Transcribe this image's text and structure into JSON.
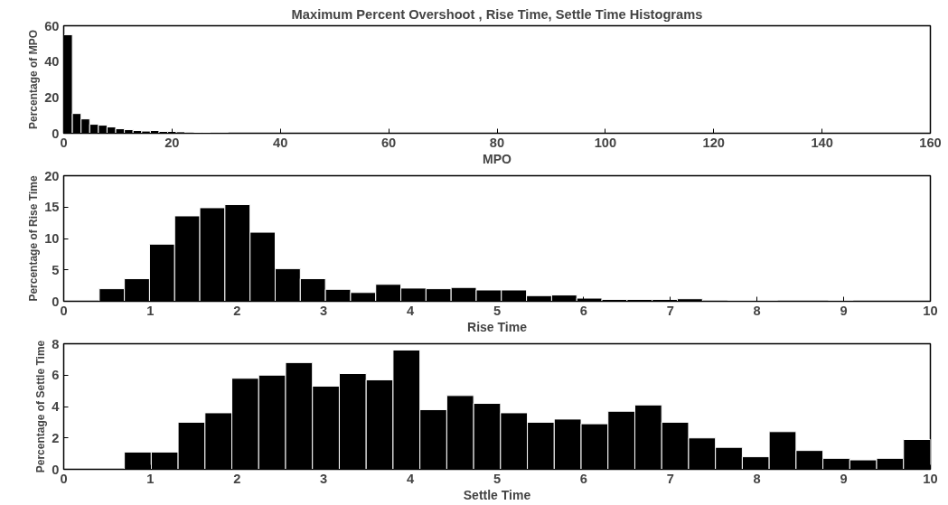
{
  "chart_data": [
    {
      "type": "histogram",
      "title": "Maximum Percent Overshoot , Rise Time, Settle Time Histograms",
      "xlabel": "MPO",
      "ylabel": "Percentage of MPO",
      "color": "#000000",
      "bins": [
        0,
        1.6,
        3.2,
        4.8,
        6.4,
        8,
        9.6,
        11.2,
        12.8,
        14.4,
        16,
        17.6,
        19.2,
        20.8,
        22.4,
        24,
        25.6,
        27.2,
        28.8,
        30.4,
        32,
        33.6,
        35.2,
        36.8,
        38.4,
        40
      ],
      "values": [
        55,
        11,
        8,
        5,
        4.5,
        3.5,
        2.5,
        2,
        1.5,
        1.2,
        1.5,
        1,
        1,
        0.8,
        0.6,
        0.5,
        0.5,
        0.4,
        0.4,
        null,
        null,
        null,
        null,
        null,
        null
      ],
      "xlim": [
        0,
        160
      ],
      "xticks": [
        0,
        20,
        40,
        60,
        80,
        100,
        120,
        140,
        160
      ],
      "ylim": [
        0,
        60
      ],
      "yticks": [
        0,
        20,
        40,
        60
      ],
      "grid": false
    },
    {
      "type": "histogram",
      "xlabel": "Rise Time",
      "ylabel": "Percentage of Rise Time",
      "color": "#000000",
      "bins": [
        0.41,
        0.7,
        0.99,
        1.28,
        1.57,
        1.86,
        2.15,
        2.44,
        2.73,
        3.02,
        3.31,
        3.6,
        3.89,
        4.18,
        4.47,
        4.76,
        5.05,
        5.34,
        5.63,
        5.92,
        6.21,
        6.5,
        6.79,
        7.08,
        7.37,
        7.66,
        7.95,
        8.24,
        8.53,
        8.82,
        9.11,
        9.4,
        9.69,
        9.98
      ],
      "values": [
        2,
        3.6,
        9.1,
        13.6,
        14.9,
        15.4,
        11,
        5.2,
        3.6,
        1.9,
        1.4,
        2.7,
        2.1,
        2.0,
        2.2,
        1.8,
        1.8,
        0.9,
        1.0,
        0.5,
        0.3,
        0.3,
        0.3,
        0.4,
        0,
        0.1,
        0.1,
        0,
        0,
        0.1,
        0,
        0,
        0
      ],
      "xlim": [
        0,
        10
      ],
      "xticks": [
        0,
        1,
        2,
        3,
        4,
        5,
        6,
        7,
        8,
        9,
        10
      ],
      "ylim": [
        0,
        20
      ],
      "yticks": [
        0,
        5,
        10,
        15,
        20
      ],
      "grid": false
    },
    {
      "type": "histogram",
      "xlabel": "Settle Time",
      "ylabel": "Percentage of Settle Time",
      "color": "#000000",
      "bins": [
        0.7,
        1.01,
        1.32,
        1.63,
        1.94,
        2.25,
        2.56,
        2.87,
        3.18,
        3.49,
        3.8,
        4.11,
        4.42,
        4.73,
        5.04,
        5.35,
        5.66,
        5.97,
        6.28,
        6.59,
        6.9,
        7.21,
        7.52,
        7.83,
        8.14,
        8.45,
        8.76,
        9.07,
        9.38,
        9.69,
        10.0
      ],
      "values": [
        1.1,
        1.1,
        3.0,
        3.6,
        5.8,
        6.0,
        6.8,
        5.3,
        6.1,
        5.7,
        7.6,
        3.8,
        4.7,
        4.2,
        3.6,
        3.0,
        3.2,
        2.9,
        3.7,
        4.1,
        3.0,
        2.0,
        1.4,
        0.8,
        2.4,
        1.2,
        0.7,
        0.6,
        0.7,
        1.9
      ],
      "xlim": [
        0,
        10
      ],
      "xticks": [
        0,
        1,
        2,
        3,
        4,
        5,
        6,
        7,
        8,
        9,
        10
      ],
      "ylim": [
        0,
        8
      ],
      "yticks": [
        0,
        2,
        4,
        6,
        8
      ],
      "grid": false
    }
  ]
}
